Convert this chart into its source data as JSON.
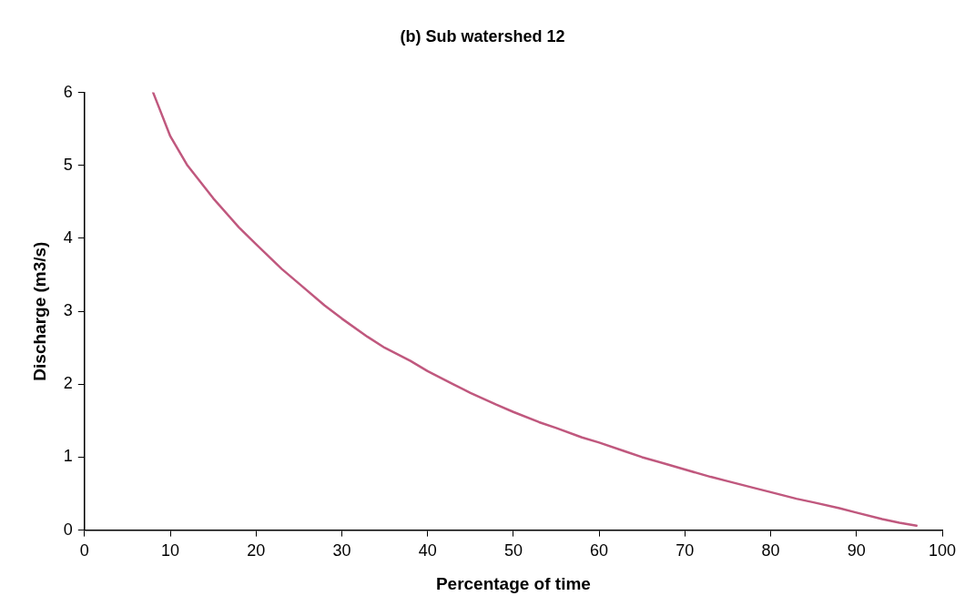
{
  "chart_data": {
    "type": "line",
    "title": "(b) Sub watershed 12",
    "xlabel": "Percentage of time",
    "ylabel": "Discharge (m3/s)",
    "series": [
      {
        "color": "#c0587e",
        "x": [
          8,
          9,
          10,
          12,
          15,
          18,
          20,
          23,
          25,
          28,
          30,
          33,
          35,
          38,
          40,
          43,
          45,
          48,
          50,
          53,
          55,
          58,
          60,
          63,
          65,
          68,
          70,
          73,
          75,
          78,
          80,
          83,
          85,
          88,
          90,
          93,
          95,
          97
        ],
        "values": [
          6,
          5.7,
          5.4,
          5.0,
          4.55,
          4.15,
          3.92,
          3.58,
          3.38,
          3.08,
          2.9,
          2.65,
          2.5,
          2.32,
          2.18,
          2.0,
          1.88,
          1.72,
          1.62,
          1.48,
          1.4,
          1.27,
          1.2,
          1.08,
          1.0,
          0.9,
          0.83,
          0.73,
          0.67,
          0.58,
          0.52,
          0.43,
          0.38,
          0.3,
          0.24,
          0.15,
          0.1,
          0.06
        ]
      }
    ],
    "xlim": [
      0,
      100
    ],
    "xticks": [
      0,
      10,
      20,
      30,
      40,
      50,
      60,
      70,
      80,
      90,
      100
    ],
    "ylim": [
      0,
      6
    ],
    "yticks": [
      0,
      1,
      2,
      3,
      4,
      5,
      6
    ],
    "grid": false,
    "legend": false,
    "marker": "none",
    "line_style": "solid"
  }
}
